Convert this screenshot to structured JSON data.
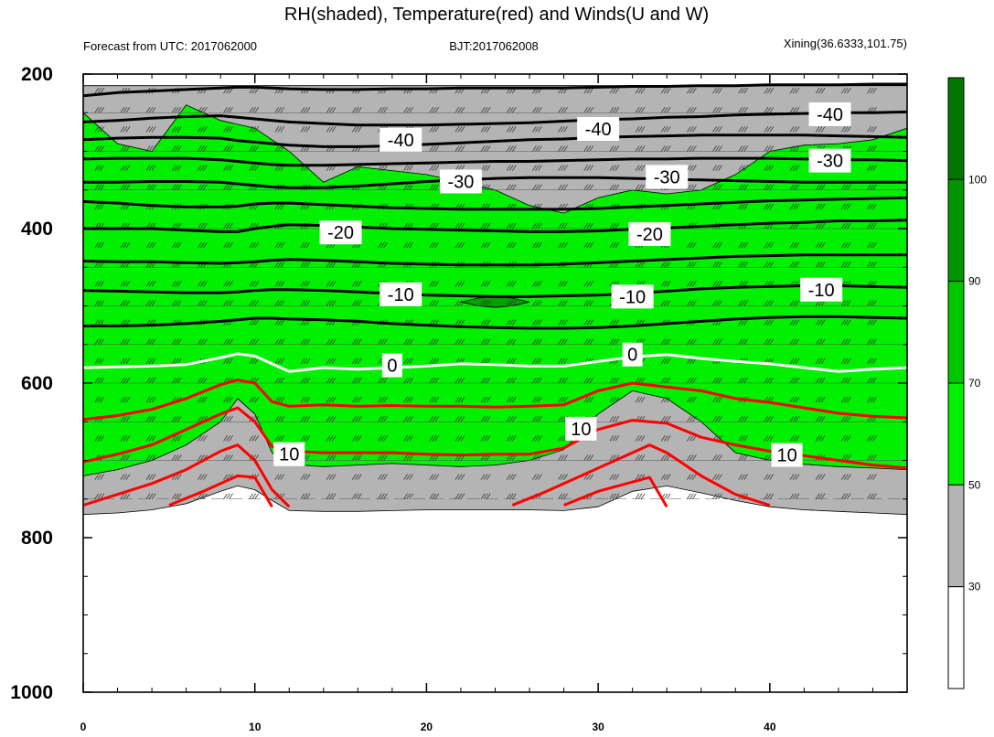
{
  "title": "RH(shaded), Temperature(red) and Winds(U and W)",
  "subtitle_left": "Forecast from UTC: 2017062000",
  "subtitle_center": "BJT:2017062008",
  "subtitle_right": "Xining(36.6333,101.75)",
  "chart_data": {
    "type": "heatmap",
    "xlim": [
      0,
      48
    ],
    "ylim": [
      1000,
      200
    ],
    "x_ticks": [
      0,
      10,
      20,
      30,
      40
    ],
    "y_ticks": [
      200,
      400,
      600,
      800,
      1000
    ],
    "colorbar": {
      "levels": [
        30,
        50,
        70,
        90,
        100
      ],
      "colors": [
        "#ffffff",
        "#b4b4b4",
        "#00f000",
        "#00c800",
        "#009600",
        "#007800"
      ]
    },
    "contour_labels": [
      {
        "text": "-40",
        "x": 43.5,
        "y": 252,
        "color": "#000000"
      },
      {
        "text": "-40",
        "x": 18.5,
        "y": 285,
        "color": "#000000"
      },
      {
        "text": "-40",
        "x": 30,
        "y": 271,
        "color": "#000000"
      },
      {
        "text": "-30",
        "x": 43.5,
        "y": 312,
        "color": "#000000"
      },
      {
        "text": "-30",
        "x": 22,
        "y": 339,
        "color": "#000000"
      },
      {
        "text": "-30",
        "x": 34,
        "y": 333,
        "color": "#000000"
      },
      {
        "text": "-20",
        "x": 15,
        "y": 405,
        "color": "#000000"
      },
      {
        "text": "-20",
        "x": 33,
        "y": 407,
        "color": "#000000"
      },
      {
        "text": "-10",
        "x": 18.5,
        "y": 485,
        "color": "#000000"
      },
      {
        "text": "-10",
        "x": 32,
        "y": 488,
        "color": "#000000"
      },
      {
        "text": "-10",
        "x": 43,
        "y": 479,
        "color": "#000000"
      },
      {
        "text": "0",
        "x": 18,
        "y": 577,
        "color": "#000000"
      },
      {
        "text": "0",
        "x": 32,
        "y": 563,
        "color": "#000000"
      },
      {
        "text": "10",
        "x": 12,
        "y": 692,
        "color": "#000000"
      },
      {
        "text": "10",
        "x": 29,
        "y": 659,
        "color": "#000000"
      },
      {
        "text": "10",
        "x": 41,
        "y": 693,
        "color": "#000000"
      }
    ],
    "series": [
      {
        "x": [
          0,
          2,
          4,
          6,
          8,
          9,
          10,
          11,
          12,
          14,
          16,
          18,
          20,
          22,
          24,
          26,
          28,
          30,
          32,
          34,
          36,
          38,
          40,
          42,
          44,
          46,
          48
        ],
        "y": [
          228,
          224,
          222,
          220,
          218,
          217,
          217,
          218,
          219,
          220,
          220,
          219,
          219,
          218,
          218,
          218,
          218,
          217,
          216,
          216,
          215,
          215,
          214,
          214,
          214,
          213,
          213
        ],
        "color": "#000000",
        "width": 3
      },
      {
        "x": [
          0,
          2,
          4,
          6,
          8,
          9,
          10,
          11,
          12,
          14,
          16,
          18,
          20,
          22,
          24,
          26,
          28,
          30,
          32,
          34,
          36,
          38,
          40,
          42,
          44,
          46,
          48
        ],
        "y": [
          262,
          260,
          257,
          255,
          254,
          256,
          258,
          260,
          262,
          264,
          266,
          266,
          266,
          265,
          264,
          263,
          261,
          259,
          258,
          256,
          255,
          253,
          252,
          251,
          250,
          250,
          249
        ],
        "color": "#000000",
        "width": 3
      },
      {
        "x": [
          0,
          2,
          4,
          6,
          8,
          9,
          10,
          11,
          12,
          14,
          16,
          18,
          20,
          22,
          24,
          26,
          28,
          30,
          32,
          34,
          36,
          38,
          40,
          42,
          44,
          46,
          48
        ],
        "y": [
          285,
          283,
          282,
          282,
          283,
          286,
          288,
          290,
          292,
          294,
          294,
          293,
          291,
          289,
          287,
          285,
          284,
          282,
          281,
          280,
          279,
          279,
          279,
          279,
          280,
          281,
          282
        ],
        "color": "#000000",
        "width": 3
      },
      {
        "x": [
          0,
          2,
          4,
          6,
          8,
          9,
          10,
          11,
          12,
          14,
          16,
          18,
          20,
          22,
          24,
          26,
          28,
          30,
          32,
          34,
          36,
          38,
          40,
          42,
          44,
          46,
          48
        ],
        "y": [
          310,
          309,
          309,
          309,
          311,
          313,
          315,
          317,
          318,
          318,
          317,
          316,
          315,
          314,
          313,
          313,
          312,
          311,
          310,
          310,
          309,
          309,
          309,
          310,
          311,
          311,
          312
        ],
        "color": "#000000",
        "width": 3
      },
      {
        "x": [
          0,
          2,
          4,
          6,
          8,
          9,
          10,
          11,
          12,
          14,
          16,
          18,
          20,
          22,
          24,
          26,
          28,
          30,
          32,
          34,
          36,
          38,
          40,
          42,
          44,
          46,
          48
        ],
        "y": [
          340,
          340,
          339,
          339,
          340,
          342,
          344,
          346,
          347,
          347,
          345,
          342,
          339,
          337,
          335,
          334,
          334,
          334,
          335,
          336,
          337,
          338,
          339,
          340,
          340,
          340,
          340
        ],
        "color": "#000000",
        "width": 3
      },
      {
        "x": [
          0,
          2,
          4,
          6,
          8,
          9,
          10,
          11,
          12,
          14,
          16,
          18,
          20,
          22,
          24,
          26,
          28,
          30,
          32,
          34,
          36,
          38,
          40,
          42,
          44,
          46,
          48
        ],
        "y": [
          365,
          367,
          370,
          372,
          372,
          371,
          368,
          367,
          367,
          369,
          371,
          373,
          374,
          375,
          375,
          375,
          375,
          374,
          372,
          370,
          368,
          366,
          364,
          363,
          362,
          361,
          360
        ],
        "color": "#000000",
        "width": 3
      },
      {
        "x": [
          0,
          2,
          4,
          6,
          8,
          9,
          10,
          11,
          12,
          14,
          16,
          18,
          20,
          22,
          24,
          26,
          28,
          30,
          32,
          34,
          36,
          38,
          40,
          42,
          44,
          46,
          48
        ],
        "y": [
          400,
          400,
          400,
          402,
          404,
          404,
          400,
          397,
          395,
          396,
          398,
          400,
          401,
          402,
          403,
          404,
          404,
          403,
          401,
          399,
          397,
          395,
          393,
          392,
          390,
          390,
          389
        ],
        "color": "#000000",
        "width": 3
      },
      {
        "x": [
          0,
          2,
          4,
          6,
          8,
          9,
          10,
          11,
          12,
          14,
          16,
          18,
          20,
          22,
          24,
          26,
          28,
          30,
          32,
          34,
          36,
          38,
          40,
          42,
          44,
          46,
          48
        ],
        "y": [
          442,
          443,
          443,
          444,
          445,
          444,
          443,
          441,
          440,
          441,
          443,
          445,
          446,
          447,
          447,
          447,
          446,
          444,
          442,
          440,
          438,
          436,
          435,
          434,
          434,
          434,
          434
        ],
        "color": "#000000",
        "width": 3
      },
      {
        "x": [
          0,
          2,
          4,
          6,
          8,
          9,
          10,
          11,
          12,
          14,
          16,
          18,
          20,
          22,
          24,
          26,
          28,
          30,
          32,
          34,
          36,
          38,
          40,
          42,
          44,
          46,
          48
        ],
        "y": [
          480,
          481,
          482,
          483,
          483,
          482,
          480,
          479,
          479,
          480,
          482,
          484,
          486,
          487,
          488,
          488,
          487,
          486,
          484,
          481,
          478,
          476,
          475,
          474,
          474,
          475,
          476
        ],
        "color": "#000000",
        "width": 3
      },
      {
        "x": [
          0,
          2,
          4,
          6,
          8,
          9,
          10,
          11,
          12,
          14,
          16,
          18,
          20,
          22,
          24,
          26,
          28,
          30,
          32,
          34,
          36,
          38,
          40,
          42,
          44,
          46,
          48
        ],
        "y": [
          526,
          526,
          525,
          523,
          520,
          518,
          516,
          516,
          517,
          518,
          520,
          523,
          525,
          527,
          528,
          529,
          529,
          528,
          526,
          523,
          520,
          517,
          515,
          514,
          514,
          515,
          516
        ],
        "color": "#000000",
        "width": 3
      },
      {
        "x": [
          0,
          2,
          4,
          6,
          8,
          9,
          10,
          11,
          12,
          14,
          16,
          18,
          20,
          22,
          24,
          26,
          28,
          30,
          32,
          34,
          36,
          38,
          40,
          42,
          44,
          46,
          48
        ],
        "y": [
          580,
          579,
          578,
          576,
          567,
          562,
          565,
          575,
          585,
          580,
          582,
          580,
          578,
          575,
          576,
          578,
          578,
          572,
          566,
          563,
          568,
          572,
          575,
          580,
          585,
          582,
          580
        ],
        "color": "#ffffff",
        "width": 3
      },
      {
        "x": [
          0,
          2,
          4,
          6,
          8,
          9,
          10,
          11,
          12,
          14,
          16,
          18,
          20,
          22,
          24,
          26,
          28,
          30,
          32,
          34,
          36,
          38,
          40,
          42,
          44,
          46,
          48
        ],
        "y": [
          647,
          642,
          634,
          620,
          602,
          596,
          600,
          624,
          630,
          628,
          630,
          629,
          630,
          630,
          631,
          630,
          628,
          610,
          600,
          605,
          610,
          620,
          625,
          632,
          639,
          643,
          645
        ],
        "color": "#ff0000",
        "width": 3
      },
      {
        "x": [
          0,
          2,
          4,
          6,
          8,
          9,
          10,
          11,
          12,
          14,
          16,
          18,
          20,
          22,
          24,
          26,
          28,
          30,
          32,
          34,
          36,
          38,
          40,
          42,
          44,
          46,
          48
        ],
        "y": [
          702,
          692,
          680,
          660,
          640,
          632,
          650,
          682,
          688,
          690,
          690,
          690,
          692,
          693,
          692,
          692,
          684,
          660,
          648,
          652,
          670,
          680,
          688,
          694,
          700,
          706,
          710
        ],
        "color": "#ff0000",
        "width": 3
      },
      {
        "x": [
          0,
          2,
          4,
          6,
          8,
          9,
          10,
          11,
          12
        ],
        "y": [
          758,
          744,
          730,
          712,
          688,
          680,
          700,
          738,
          760
        ],
        "color": "#ff0000",
        "width": 3
      },
      {
        "x": [
          25,
          27,
          29,
          31,
          33,
          34,
          36,
          38,
          40
        ],
        "y": [
          758,
          740,
          720,
          700,
          680,
          690,
          720,
          744,
          758
        ],
        "color": "#ff0000",
        "width": 3
      },
      {
        "x": [
          5,
          7,
          9,
          10,
          11
        ],
        "y": [
          758,
          740,
          720,
          722,
          760
        ],
        "color": "#ff0000",
        "width": 3
      },
      {
        "x": [
          28,
          30,
          33,
          34
        ],
        "y": [
          758,
          740,
          722,
          760
        ],
        "color": "#ff0000",
        "width": 3
      }
    ],
    "rh_fields": [
      {
        "level": "30-50",
        "x": [
          0,
          0,
          2,
          4,
          6,
          8,
          9,
          10,
          11,
          12,
          14,
          16,
          18,
          20,
          22,
          24,
          26,
          28,
          30,
          32,
          34,
          36,
          38,
          40,
          42,
          44,
          46,
          48,
          48,
          46,
          44,
          42,
          40,
          38,
          36,
          34,
          32,
          30,
          28,
          26,
          24,
          22,
          20,
          18,
          16,
          14,
          12,
          10,
          8,
          6,
          4,
          2
        ],
        "y": [
          215,
          770,
          768,
          764,
          756,
          740,
          733,
          738,
          752,
          765,
          766,
          766,
          765,
          764,
          764,
          764,
          764,
          765,
          760,
          740,
          733,
          742,
          752,
          760,
          764,
          766,
          768,
          770,
          215,
          215,
          215,
          215,
          215,
          215,
          215,
          215,
          215,
          215,
          215,
          215,
          215,
          215,
          215,
          215,
          215,
          215,
          215,
          215,
          215,
          215,
          215,
          215
        ]
      },
      {
        "level": "50-70",
        "x": [
          0,
          0,
          2,
          4,
          6,
          8,
          9,
          10,
          11,
          12,
          14,
          16,
          18,
          20,
          22,
          24,
          26,
          28,
          30,
          32,
          34,
          36,
          38,
          40,
          42,
          44,
          46,
          48,
          48,
          46,
          44,
          42,
          40,
          38,
          36,
          34,
          32,
          30,
          28,
          26,
          24,
          22,
          20,
          18,
          16,
          14,
          12,
          10,
          8,
          6,
          4,
          2
        ],
        "y": [
          250,
          720,
          712,
          700,
          680,
          650,
          620,
          640,
          690,
          705,
          708,
          706,
          704,
          706,
          708,
          706,
          700,
          686,
          640,
          610,
          620,
          650,
          690,
          700,
          705,
          708,
          710,
          712,
          270,
          285,
          290,
          292,
          300,
          330,
          350,
          355,
          350,
          360,
          380,
          370,
          350,
          340,
          330,
          325,
          320,
          340,
          300,
          270,
          260,
          240,
          300,
          290
        ]
      },
      {
        "level": "70-90",
        "x": [
          22,
          23,
          24,
          25,
          26,
          25,
          24,
          23
        ],
        "y": [
          495,
          490,
          488,
          490,
          495,
          500,
          502,
          500
        ]
      }
    ],
    "colorbar_labels": [
      "30",
      "50",
      "70",
      "90",
      "100"
    ]
  }
}
